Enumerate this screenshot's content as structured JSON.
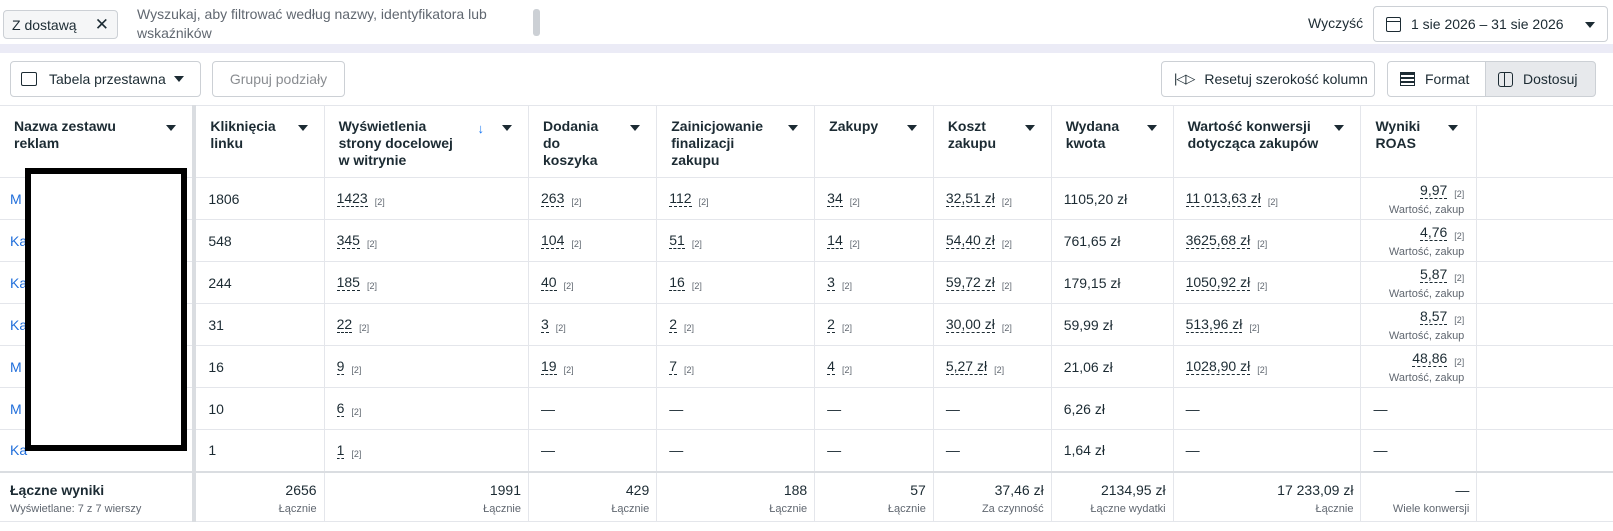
{
  "filter": {
    "chip_label": "Z dostawą",
    "search_placeholder": "Wyszukaj, aby filtrować według nazwy, identyfikatora lub wskaźników",
    "clear_label": "Wyczyść",
    "date_range": "1 sie 2026 – 31 sie 2026"
  },
  "toolbar": {
    "pivot_label": "Tabela przestawna",
    "group_label": "Grupuj podziały",
    "reset_label": "Resetuj szerokość kolumn",
    "format_label": "Format",
    "customize_label": "Dostosuj"
  },
  "columns": [
    "Nazwa zestawu reklam",
    "Kliknięcia linku",
    "Wyświetlenia strony docelowej w witrynie",
    "Dodania do koszyka",
    "Zainicjowanie finalizacji zakupu",
    "Zakupy",
    "Koszt zakupu",
    "Wydana kwota",
    "Wartość konwersji dotycząca zakupów",
    "Wyniki ROAS"
  ],
  "rows": [
    {
      "name": "M",
      "clicks": "1806",
      "views": "1423",
      "cart": "263",
      "checkout": "112",
      "purchases": "34",
      "cost": "32,51 zł",
      "spent": "1105,20 zł",
      "value": "11 013,63 zł",
      "roas": "9,97",
      "roas_label": "Wartość, zakup"
    },
    {
      "name": "Ka",
      "clicks": "548",
      "views": "345",
      "cart": "104",
      "checkout": "51",
      "purchases": "14",
      "cost": "54,40 zł",
      "spent": "761,65 zł",
      "value": "3625,68 zł",
      "roas": "4,76",
      "roas_label": "Wartość, zakup"
    },
    {
      "name": "Ka",
      "clicks": "244",
      "views": "185",
      "cart": "40",
      "checkout": "16",
      "purchases": "3",
      "cost": "59,72 zł",
      "spent": "179,15 zł",
      "value": "1050,92 zł",
      "roas": "5,87",
      "roas_label": "Wartość, zakup"
    },
    {
      "name": "Ka",
      "clicks": "31",
      "views": "22",
      "cart": "3",
      "checkout": "2",
      "purchases": "2",
      "cost": "30,00 zł",
      "spent": "59,99 zł",
      "value": "513,96 zł",
      "roas": "8,57",
      "roas_label": "Wartość, zakup"
    },
    {
      "name": "M",
      "clicks": "16",
      "views": "9",
      "cart": "19",
      "checkout": "7",
      "purchases": "4",
      "cost": "5,27 zł",
      "spent": "21,06 zł",
      "value": "1028,90 zł",
      "roas": "48,86",
      "roas_label": "Wartość, zakup"
    },
    {
      "name": "M",
      "clicks": "10",
      "views": "6",
      "cart": "—",
      "checkout": "—",
      "purchases": "—",
      "cost": "—",
      "spent": "6,26 zł",
      "value": "—",
      "roas": "—",
      "roas_label": ""
    },
    {
      "name": "Ka",
      "clicks": "1",
      "views": "1",
      "cart": "—",
      "checkout": "—",
      "purchases": "—",
      "cost": "—",
      "spent": "1,64 zł",
      "value": "—",
      "roas": "—",
      "roas_label": ""
    }
  ],
  "ref_marker": "[2]",
  "totals": {
    "title": "Łączne wyniki",
    "subtitle": "Wyświetlane: 7 z 7 wierszy",
    "clicks": "2656",
    "clicks_label": "Łącznie",
    "views": "1991",
    "views_label": "Łącznie",
    "cart": "429",
    "cart_label": "Łącznie",
    "checkout": "188",
    "checkout_label": "Łącznie",
    "purchases": "57",
    "purchases_label": "Łącznie",
    "cost": "37,46 zł",
    "cost_label": "Za czynność",
    "spent": "2134,95 zł",
    "spent_label": "Łączne wydatki",
    "value": "17 233,09 zł",
    "value_label": "Łącznie",
    "roas": "—",
    "roas_label": "Wiele konwersji"
  }
}
